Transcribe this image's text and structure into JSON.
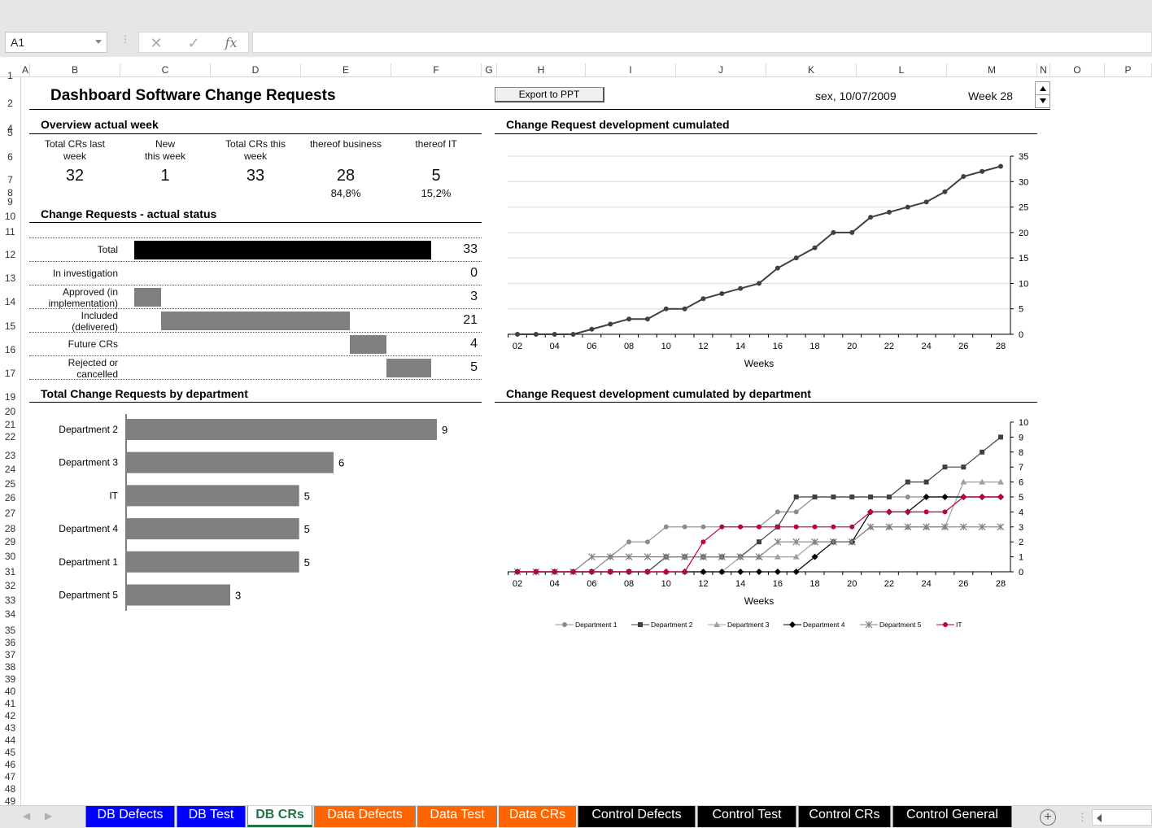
{
  "namebox": "A1",
  "formula_bar": {
    "fx": "fx",
    "cancel": "✕",
    "enter": "✓",
    "sep": "⋮",
    "value": ""
  },
  "columns": [
    "A",
    "B",
    "C",
    "D",
    "E",
    "F",
    "G",
    "H",
    "I",
    "J",
    "K",
    "L",
    "M",
    "N",
    "O",
    "P"
  ],
  "rows": [
    "1",
    "2",
    "4",
    "5",
    "6",
    "7",
    "8",
    "9",
    "10",
    "11",
    "12",
    "13",
    "14",
    "15",
    "16",
    "17",
    "19",
    "20",
    "21",
    "22",
    "23",
    "24",
    "25",
    "26",
    "27",
    "28",
    "29",
    "30",
    "31",
    "32",
    "33",
    "34",
    "35",
    "36",
    "37",
    "38",
    "39",
    "40",
    "41",
    "42",
    "43",
    "44",
    "45",
    "46",
    "47",
    "48",
    "49"
  ],
  "dashboard": {
    "title": "Dashboard Software Change Requests",
    "export_label": "Export to PPT",
    "date": "sex, 10/07/2009",
    "week": "Week 28"
  },
  "overview": {
    "title": "Overview actual week",
    "metrics": [
      {
        "label1": "Total CRs last",
        "label2": "week",
        "value": "32",
        "pct": ""
      },
      {
        "label1": "New",
        "label2": "this week",
        "value": "1",
        "pct": ""
      },
      {
        "label1": "Total CRs this",
        "label2": "week",
        "value": "33",
        "pct": ""
      },
      {
        "label1": "thereof business",
        "label2": "",
        "value": "28",
        "pct": "84,8%"
      },
      {
        "label1": "thereof IT",
        "label2": "",
        "value": "5",
        "pct": "15,2%"
      }
    ]
  },
  "status": {
    "title": "Change Requests - actual status",
    "rows": [
      {
        "label1": "Total",
        "label2": "",
        "value": 33,
        "offset": 0,
        "color": "#000000"
      },
      {
        "label1": "In investigation",
        "label2": "",
        "value": 0,
        "offset": 0,
        "color": "#808080"
      },
      {
        "label1": "Approved (in",
        "label2": "implementation)",
        "value": 3,
        "offset": 0,
        "color": "#808080"
      },
      {
        "label1": "Included",
        "label2": "(delivered)",
        "value": 21,
        "offset": 3,
        "color": "#808080"
      },
      {
        "label1": "Future CRs",
        "label2": "",
        "value": 4,
        "offset": 24,
        "color": "#808080"
      },
      {
        "label1": "Rejected or",
        "label2": "cancelled",
        "value": 5,
        "offset": 28,
        "color": "#808080"
      }
    ]
  },
  "by_department": {
    "title": "Total Change Requests by department",
    "chart_data": {
      "type": "bar",
      "orientation": "horizontal",
      "categories": [
        "Department 2",
        "Department 3",
        "IT",
        "Department 4",
        "Department 1",
        "Department 5"
      ],
      "values": [
        9,
        6,
        5,
        5,
        5,
        3
      ],
      "color": "#808080",
      "xlim": [
        0,
        9
      ]
    }
  },
  "cumulated": {
    "title": "Change Request development cumulated",
    "chart_data": {
      "type": "line",
      "x": [
        2,
        3,
        4,
        5,
        6,
        7,
        8,
        9,
        10,
        11,
        12,
        13,
        14,
        15,
        16,
        17,
        18,
        19,
        20,
        21,
        22,
        23,
        24,
        25,
        26,
        27,
        28
      ],
      "x_tick_labels": [
        "02",
        "04",
        "06",
        "08",
        "10",
        "12",
        "14",
        "16",
        "18",
        "20",
        "22",
        "24",
        "26",
        "28"
      ],
      "series": [
        {
          "values": [
            0,
            0,
            0,
            0,
            1,
            2,
            3,
            3,
            5,
            5,
            7,
            8,
            9,
            10,
            13,
            15,
            17,
            20,
            20,
            23,
            24,
            25,
            26,
            28,
            31,
            32,
            33
          ],
          "color": "#404040"
        }
      ],
      "xlabel": "Weeks",
      "ylim": [
        0,
        35
      ],
      "yticks": [
        0,
        5,
        10,
        15,
        20,
        25,
        30,
        35
      ],
      "y_axis_side": "right",
      "grid": true
    }
  },
  "cumulated_by_dept": {
    "title": "Change Request development cumulated by department",
    "chart_data": {
      "type": "line",
      "x": [
        2,
        3,
        4,
        5,
        6,
        7,
        8,
        9,
        10,
        11,
        12,
        13,
        14,
        15,
        16,
        17,
        18,
        19,
        20,
        21,
        22,
        23,
        24,
        25,
        26,
        27,
        28
      ],
      "x_tick_labels": [
        "02",
        "04",
        "06",
        "08",
        "10",
        "12",
        "14",
        "16",
        "18",
        "20",
        "22",
        "24",
        "26",
        "28"
      ],
      "series": [
        {
          "name": "Department 1",
          "marker": "circle",
          "color": "#8c8c8c",
          "values": [
            0,
            0,
            0,
            0,
            0,
            1,
            2,
            2,
            3,
            3,
            3,
            3,
            3,
            3,
            4,
            4,
            5,
            5,
            5,
            5,
            5,
            5,
            5,
            5,
            5,
            5,
            5
          ]
        },
        {
          "name": "Department 2",
          "marker": "square",
          "color": "#404040",
          "values": [
            0,
            0,
            0,
            0,
            0,
            0,
            0,
            0,
            1,
            1,
            1,
            1,
            1,
            2,
            3,
            5,
            5,
            5,
            5,
            5,
            5,
            6,
            6,
            7,
            7,
            8,
            9
          ]
        },
        {
          "name": "Department 3",
          "marker": "triangle",
          "color": "#a0a0a0",
          "values": [
            0,
            0,
            0,
            0,
            0,
            0,
            0,
            0,
            0,
            0,
            0,
            0,
            1,
            1,
            1,
            1,
            2,
            2,
            2,
            3,
            3,
            3,
            3,
            3,
            6,
            6,
            6
          ]
        },
        {
          "name": "Department 4",
          "marker": "diamond",
          "color": "#000000",
          "values": [
            0,
            0,
            0,
            0,
            0,
            0,
            0,
            0,
            0,
            0,
            0,
            0,
            0,
            0,
            0,
            0,
            1,
            2,
            2,
            4,
            4,
            4,
            5,
            5,
            5,
            5,
            5
          ]
        },
        {
          "name": "Department 5",
          "marker": "star",
          "color": "#808080",
          "values": [
            0,
            0,
            0,
            0,
            1,
            1,
            1,
            1,
            1,
            1,
            1,
            1,
            1,
            1,
            2,
            2,
            2,
            2,
            2,
            3,
            3,
            3,
            3,
            3,
            3,
            3,
            3
          ]
        },
        {
          "name": "IT",
          "marker": "circle",
          "color": "#c00040",
          "values": [
            0,
            0,
            0,
            0,
            0,
            0,
            0,
            0,
            0,
            0,
            2,
            3,
            3,
            3,
            3,
            3,
            3,
            3,
            3,
            4,
            4,
            4,
            4,
            4,
            5,
            5,
            5
          ]
        }
      ],
      "xlabel": "Weeks",
      "ylim": [
        0,
        10
      ],
      "yticks": [
        0,
        1,
        2,
        3,
        4,
        5,
        6,
        7,
        8,
        9,
        10
      ],
      "y_axis_side": "right",
      "legend": "bottom"
    }
  },
  "tabs": [
    {
      "label": "DB Defects",
      "bg": "#0000ff",
      "fg": "#ffffff",
      "active": false
    },
    {
      "label": "DB Test",
      "bg": "#0000ff",
      "fg": "#ffffff",
      "active": false
    },
    {
      "label": "DB CRs",
      "bg": "#ffffff",
      "fg": "#217346",
      "active": true
    },
    {
      "label": "Data Defects",
      "bg": "#ff6600",
      "fg": "#ffffff",
      "active": false
    },
    {
      "label": "Data Test",
      "bg": "#ff6600",
      "fg": "#ffffff",
      "active": false
    },
    {
      "label": "Data CRs",
      "bg": "#ff6600",
      "fg": "#ffffff",
      "active": false
    },
    {
      "label": "Control Defects",
      "bg": "#000000",
      "fg": "#ffffff",
      "active": false
    },
    {
      "label": "Control Test",
      "bg": "#000000",
      "fg": "#ffffff",
      "active": false
    },
    {
      "label": "Control CRs",
      "bg": "#000000",
      "fg": "#ffffff",
      "active": false
    },
    {
      "label": "Control General",
      "bg": "#000000",
      "fg": "#ffffff",
      "active": false
    }
  ]
}
